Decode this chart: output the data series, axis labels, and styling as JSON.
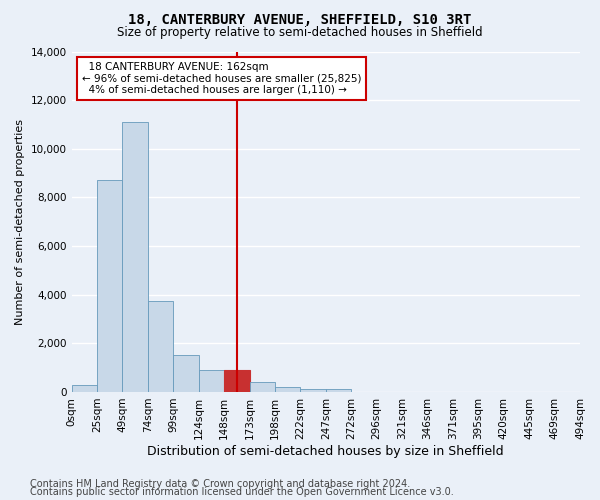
{
  "title": "18, CANTERBURY AVENUE, SHEFFIELD, S10 3RT",
  "subtitle": "Size of property relative to semi-detached houses in Sheffield",
  "xlabel": "Distribution of semi-detached houses by size in Sheffield",
  "ylabel": "Number of semi-detached properties",
  "footnote1": "Contains HM Land Registry data © Crown copyright and database right 2024.",
  "footnote2": "Contains public sector information licensed under the Open Government Licence v3.0.",
  "bin_labels": [
    "0sqm",
    "25sqm",
    "49sqm",
    "74sqm",
    "99sqm",
    "124sqm",
    "148sqm",
    "173sqm",
    "198sqm",
    "222sqm",
    "247sqm",
    "272sqm",
    "296sqm",
    "321sqm",
    "346sqm",
    "371sqm",
    "395sqm",
    "420sqm",
    "445sqm",
    "469sqm",
    "494sqm"
  ],
  "bar_values": [
    300,
    8700,
    11100,
    3750,
    1500,
    900,
    900,
    420,
    220,
    120,
    110,
    0,
    0,
    0,
    0,
    0,
    0,
    0,
    0,
    0
  ],
  "bar_color": "#c8d8e8",
  "bar_edge_color": "#6699bb",
  "highlight_bar_index": 6,
  "highlight_bar_color": "#c83030",
  "highlight_bar_edge_color": "#c83030",
  "vline_x": 6.5,
  "vline_color": "#cc0000",
  "ylim": [
    0,
    14000
  ],
  "yticks": [
    0,
    2000,
    4000,
    6000,
    8000,
    10000,
    12000,
    14000
  ],
  "annotation_title": "18 CANTERBURY AVENUE: 162sqm",
  "annotation_line1": "← 96% of semi-detached houses are smaller (25,825)",
  "annotation_line2": "4% of semi-detached houses are larger (1,110) →",
  "annotation_box_facecolor": "#ffffff",
  "annotation_box_edgecolor": "#cc0000",
  "bg_color": "#eaf0f8",
  "plot_bg_color": "#eaf0f8",
  "grid_color": "#ffffff",
  "title_fontsize": 10,
  "subtitle_fontsize": 8.5,
  "xlabel_fontsize": 9,
  "ylabel_fontsize": 8,
  "tick_fontsize": 7.5,
  "annotation_fontsize": 7.5,
  "footnote_fontsize": 7
}
